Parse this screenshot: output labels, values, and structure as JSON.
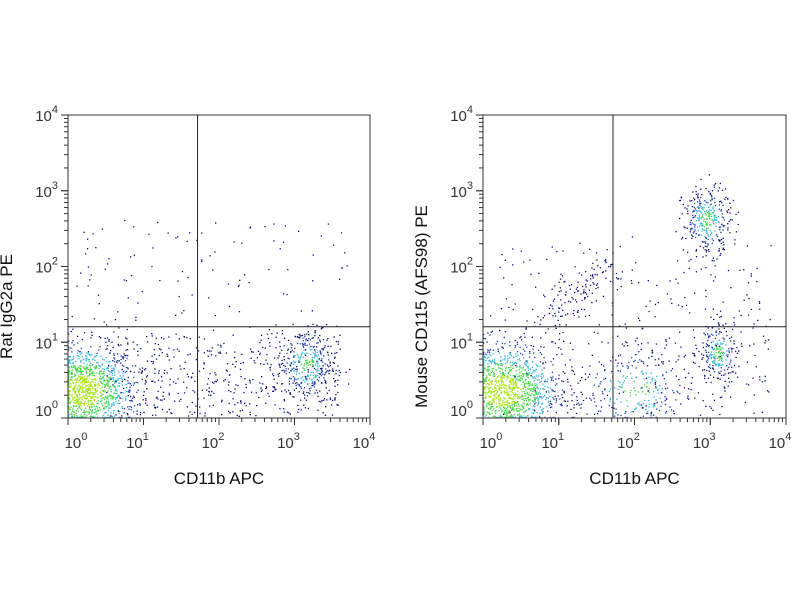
{
  "chart_data": [
    {
      "type": "scatter",
      "subtype": "flow-cytometry-density-dot-plot",
      "xlabel": "CD11b APC",
      "ylabel": "Rat IgG2a PE",
      "xscale": "log",
      "yscale": "log",
      "xlim": [
        1,
        10000
      ],
      "ylim": [
        1,
        10000
      ],
      "x_ticks": [
        {
          "base": "10",
          "exp": "0"
        },
        {
          "base": "10",
          "exp": "1"
        },
        {
          "base": "10",
          "exp": "2"
        },
        {
          "base": "10",
          "exp": "3"
        },
        {
          "base": "10",
          "exp": "4"
        }
      ],
      "y_ticks": [
        {
          "base": "10",
          "exp": "0"
        },
        {
          "base": "10",
          "exp": "1"
        },
        {
          "base": "10",
          "exp": "2"
        },
        {
          "base": "10",
          "exp": "3"
        },
        {
          "base": "10",
          "exp": "4"
        }
      ],
      "quadrant_gate": {
        "x": 52,
        "y": 16
      },
      "populations_log10": [
        {
          "name": "double-negative",
          "cx": 0.2,
          "cy": 0.35,
          "sx": 0.35,
          "sy": 0.3,
          "n": 1400
        },
        {
          "name": "CD11b+",
          "cx": 3.15,
          "cy": 0.7,
          "sx": 0.2,
          "sy": 0.25,
          "n": 320
        },
        {
          "name": "scatter-low",
          "ux": [
            0.5,
            3.6
          ],
          "uy": [
            0,
            1.1
          ],
          "n": 450
        },
        {
          "name": "scatter-high",
          "ux": [
            0.1,
            3.7
          ],
          "uy": [
            1.1,
            2.6
          ],
          "n": 110
        }
      ]
    },
    {
      "type": "scatter",
      "subtype": "flow-cytometry-density-dot-plot",
      "xlabel": "CD11b APC",
      "ylabel": "Mouse CD115 (AFS98) PE",
      "xscale": "log",
      "yscale": "log",
      "xlim": [
        1,
        10000
      ],
      "ylim": [
        1,
        10000
      ],
      "x_ticks": [
        {
          "base": "10",
          "exp": "0"
        },
        {
          "base": "10",
          "exp": "1"
        },
        {
          "base": "10",
          "exp": "2"
        },
        {
          "base": "10",
          "exp": "3"
        },
        {
          "base": "10",
          "exp": "4"
        }
      ],
      "y_ticks": [
        {
          "base": "10",
          "exp": "0"
        },
        {
          "base": "10",
          "exp": "1"
        },
        {
          "base": "10",
          "exp": "2"
        },
        {
          "base": "10",
          "exp": "3"
        },
        {
          "base": "10",
          "exp": "4"
        }
      ],
      "quadrant_gate": {
        "x": 52,
        "y": 16
      },
      "populations_log10": [
        {
          "name": "double-negative",
          "cx": 0.25,
          "cy": 0.35,
          "sx": 0.38,
          "sy": 0.3,
          "n": 1400
        },
        {
          "name": "CD11b+CD115+",
          "cx": 2.95,
          "cy": 2.6,
          "sx": 0.16,
          "sy": 0.22,
          "n": 320
        },
        {
          "name": "CD11b+CD115-",
          "cx": 3.1,
          "cy": 0.85,
          "sx": 0.12,
          "sy": 0.2,
          "n": 220
        },
        {
          "name": "diagonal",
          "line": [
            [
              0.9,
              1.3
            ],
            [
              1.75,
              2.15
            ]
          ],
          "spread": 0.12,
          "n": 110
        },
        {
          "name": "CD11b-mid",
          "cx": 2.0,
          "cy": 0.35,
          "sx": 0.4,
          "sy": 0.3,
          "n": 260
        },
        {
          "name": "scatter",
          "ux": [
            0.2,
            3.8
          ],
          "uy": [
            0,
            2.3
          ],
          "n": 330
        }
      ]
    }
  ],
  "colors": {
    "low": "#0b0f6e",
    "mid": "#1f3fb0",
    "cyan": "#2cb7d6",
    "high": "#40d640",
    "peak": "#a8e41c",
    "axis": "#333333"
  }
}
